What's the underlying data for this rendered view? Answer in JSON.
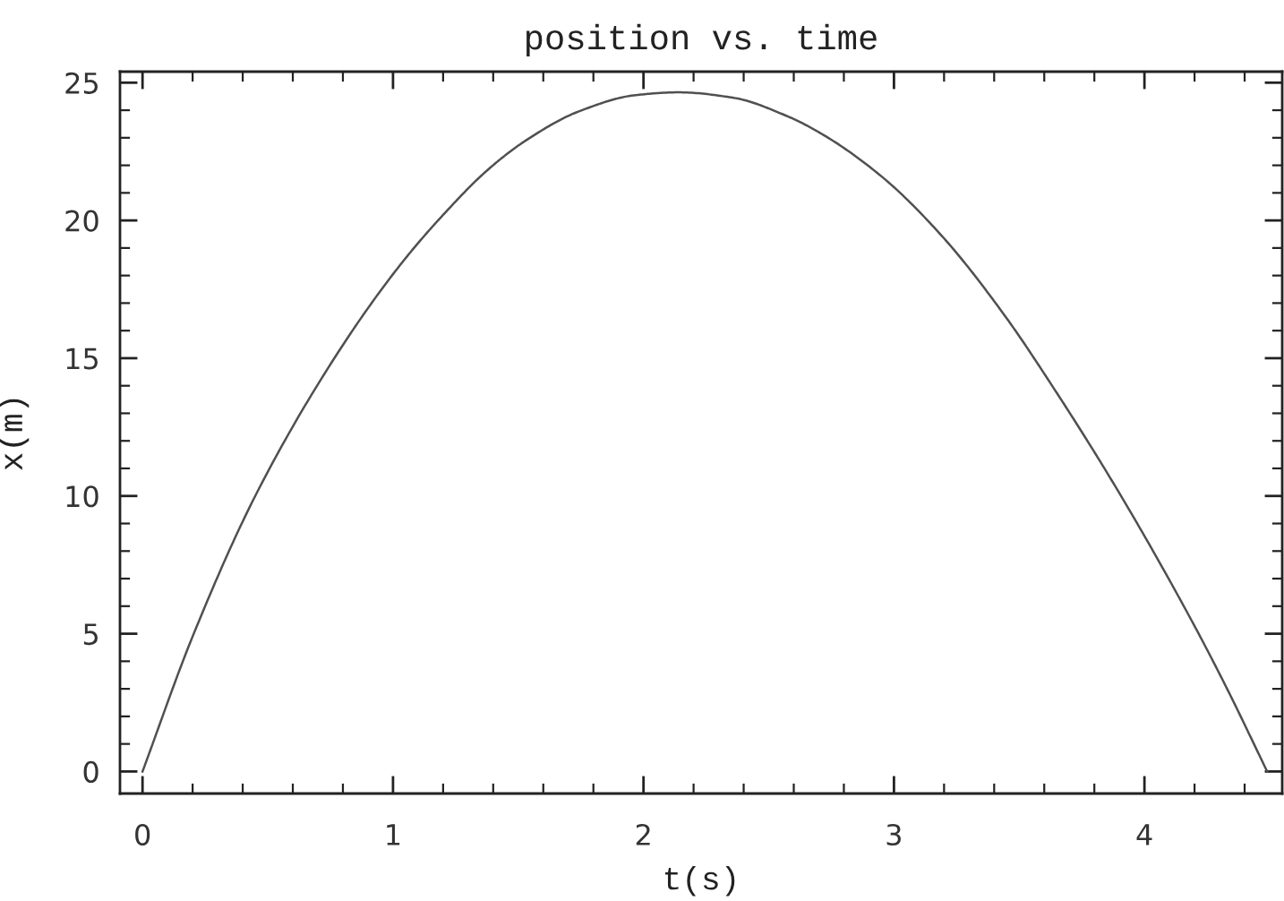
{
  "chart_data": {
    "type": "line",
    "title": "position vs. time",
    "xlabel": "t(s)",
    "ylabel": "x(m)",
    "x": [
      0,
      0.2,
      0.45,
      0.78,
      1.03,
      1.2,
      1.38,
      1.53,
      1.74,
      1.97,
      2.14,
      2.36,
      2.57,
      2.71,
      2.95,
      3.19,
      3.43,
      3.66,
      3.9,
      4.19,
      4.33,
      4.49
    ],
    "series": [
      {
        "color": "#505050",
        "values": [
          0,
          4.9,
          10.0,
          15.2,
          18.4,
          20.2,
          21.85,
          22.9,
          23.95,
          24.55,
          24.65,
          24.45,
          23.8,
          23.15,
          21.6,
          19.45,
          16.7,
          13.6,
          10.1,
          5.45,
          3.0,
          0
        ]
      }
    ],
    "xlim": [
      -0.09,
      4.55
    ],
    "ylim": [
      -0.8,
      25.4
    ],
    "xticks": [
      0,
      {
        "value": 0.2,
        "label": null
      },
      {
        "value": 0.4,
        "label": null
      },
      {
        "value": 0.6,
        "label": null
      },
      {
        "value": 0.8,
        "label": null
      },
      1,
      {
        "value": 1.2,
        "label": null
      },
      {
        "value": 1.4,
        "label": null
      },
      {
        "value": 1.6,
        "label": null
      },
      {
        "value": 1.8,
        "label": null
      },
      2,
      {
        "value": 2.2,
        "label": null
      },
      {
        "value": 2.4,
        "label": null
      },
      {
        "value": 2.6,
        "label": null
      },
      {
        "value": 2.8,
        "label": null
      },
      3,
      {
        "value": 3.2,
        "label": null
      },
      {
        "value": 3.4,
        "label": null
      },
      {
        "value": 3.6,
        "label": null
      },
      {
        "value": 3.8,
        "label": null
      },
      4,
      {
        "value": 4.2,
        "label": null
      },
      {
        "value": 4.4,
        "label": null
      }
    ],
    "yticks": [
      0,
      {
        "value": 1,
        "label": null
      },
      {
        "value": 2,
        "label": null
      },
      {
        "value": 3,
        "label": null
      },
      {
        "value": 4,
        "label": null
      },
      5,
      {
        "value": 6,
        "label": null
      },
      {
        "value": 7,
        "label": null
      },
      {
        "value": 8,
        "label": null
      },
      {
        "value": 9,
        "label": null
      },
      10,
      {
        "value": 11,
        "label": null
      },
      {
        "value": 12,
        "label": null
      },
      {
        "value": 13,
        "label": null
      },
      {
        "value": 14,
        "label": null
      },
      15,
      {
        "value": 16,
        "label": null
      },
      {
        "value": 17,
        "label": null
      },
      {
        "value": 18,
        "label": null
      },
      {
        "value": 19,
        "label": null
      },
      20,
      {
        "value": 21,
        "label": null
      },
      {
        "value": 22,
        "label": null
      },
      {
        "value": 23,
        "label": null
      },
      {
        "value": 24,
        "label": null
      },
      25
    ],
    "line_style": "solid",
    "marker": "none"
  }
}
